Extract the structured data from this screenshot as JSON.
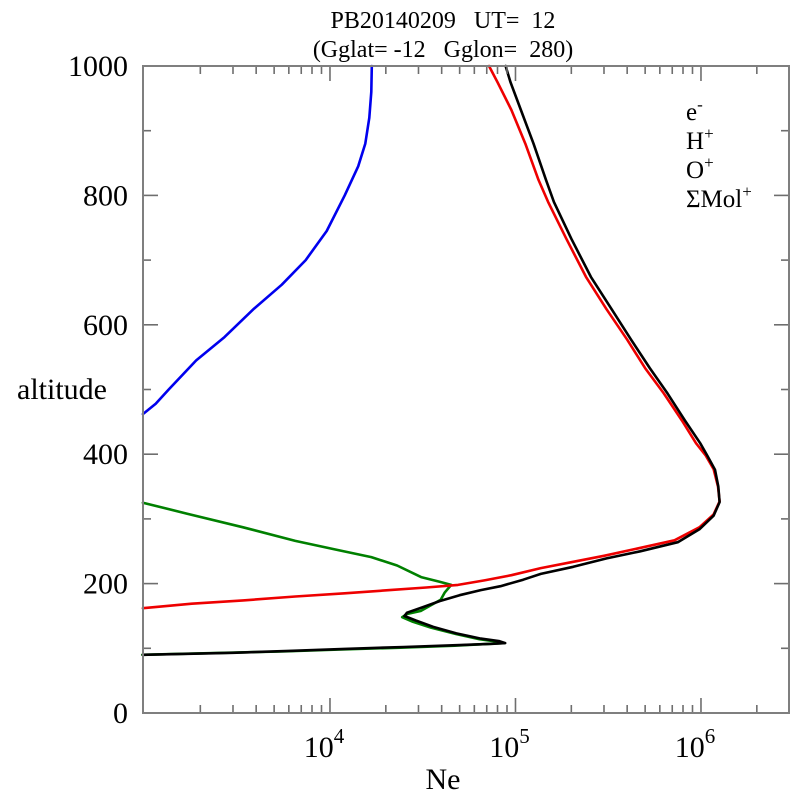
{
  "title": {
    "line1": "PB20140209   UT=  12",
    "line2": "(Gglat= -12   Gglon=  280)"
  },
  "y_axis": {
    "label": "altitude",
    "min": 0,
    "max": 1000,
    "major_ticks": [
      0,
      200,
      400,
      600,
      800,
      1000
    ],
    "minor_ticks": [
      100,
      300,
      500,
      700,
      900
    ]
  },
  "x_axis": {
    "label": "Ne",
    "scale": "log",
    "major_tick_exponents": [
      4,
      5,
      6
    ],
    "minor_tick_values": [
      2000,
      3000,
      4000,
      5000,
      6000,
      7000,
      8000,
      9000,
      20000,
      30000,
      40000,
      50000,
      60000,
      70000,
      80000,
      90000,
      200000,
      300000,
      400000,
      500000,
      600000,
      700000,
      800000,
      900000,
      2000000
    ]
  },
  "legend": {
    "items": [
      {
        "base": "e",
        "sup": "-",
        "color": "#000000"
      },
      {
        "base": "H",
        "sup": "+",
        "color": "#0000ee"
      },
      {
        "base": "O",
        "sup": "+",
        "color": "#ee0000"
      },
      {
        "base": "ΣMol",
        "sup": "+",
        "color": "#008000"
      }
    ]
  },
  "chart_data": {
    "type": "line",
    "title": "PB20140209 UT= 12 (Gglat= -12 Gglon= 280)",
    "xlabel": "Ne",
    "ylabel": "altitude",
    "x_scale": "log",
    "xlim": [
      982,
      2980000
    ],
    "ylim": [
      0,
      1000
    ],
    "grid": false,
    "legend_position": "top-right",
    "series": [
      {
        "name": "e-",
        "color": "#000000",
        "points": [
          [
            980,
            90
          ],
          [
            1500,
            91
          ],
          [
            3000,
            93
          ],
          [
            6000,
            96
          ],
          [
            12000,
            99
          ],
          [
            25000,
            102
          ],
          [
            50000,
            105
          ],
          [
            75000,
            107
          ],
          [
            88000,
            108
          ],
          [
            82000,
            111
          ],
          [
            65000,
            115
          ],
          [
            48000,
            123
          ],
          [
            36000,
            133
          ],
          [
            29000,
            143
          ],
          [
            25200,
            150
          ],
          [
            26000,
            155
          ],
          [
            32000,
            164
          ],
          [
            39000,
            173
          ],
          [
            50000,
            182
          ],
          [
            65000,
            190
          ],
          [
            83000,
            196
          ],
          [
            110000,
            206
          ],
          [
            137000,
            215
          ],
          [
            205000,
            226
          ],
          [
            310000,
            239
          ],
          [
            470000,
            250
          ],
          [
            750000,
            264
          ],
          [
            980000,
            284
          ],
          [
            1170000,
            305
          ],
          [
            1260000,
            326
          ],
          [
            1240000,
            350
          ],
          [
            1190000,
            376
          ],
          [
            1080000,
            398
          ],
          [
            990000,
            417
          ],
          [
            820000,
            452
          ],
          [
            660000,
            494
          ],
          [
            530000,
            533
          ],
          [
            420000,
            577
          ],
          [
            330000,
            624
          ],
          [
            255000,
            674
          ],
          [
            200000,
            733
          ],
          [
            161000,
            790
          ],
          [
            146000,
            824
          ],
          [
            125000,
            880
          ],
          [
            107000,
            932
          ],
          [
            94000,
            975
          ],
          [
            88500,
            1000
          ]
        ]
      },
      {
        "name": "H+",
        "color": "#0000ee",
        "points": [
          [
            980,
            462
          ],
          [
            1150,
            478
          ],
          [
            1350,
            500
          ],
          [
            1900,
            545
          ],
          [
            2700,
            581
          ],
          [
            3900,
            625
          ],
          [
            5500,
            662
          ],
          [
            7400,
            700
          ],
          [
            9600,
            745
          ],
          [
            12000,
            800
          ],
          [
            14200,
            845
          ],
          [
            15500,
            880
          ],
          [
            16300,
            920
          ],
          [
            16700,
            960
          ],
          [
            16800,
            1000
          ]
        ]
      },
      {
        "name": "O+",
        "color": "#ee0000",
        "points": [
          [
            980,
            162
          ],
          [
            1800,
            169
          ],
          [
            3400,
            174
          ],
          [
            6500,
            180
          ],
          [
            12000,
            185
          ],
          [
            21000,
            190
          ],
          [
            33000,
            194
          ],
          [
            49000,
            198
          ],
          [
            68000,
            205
          ],
          [
            95000,
            213
          ],
          [
            137000,
            224
          ],
          [
            200000,
            233
          ],
          [
            300000,
            243
          ],
          [
            450000,
            254
          ],
          [
            720000,
            267
          ],
          [
            980000,
            287
          ],
          [
            1170000,
            307
          ],
          [
            1260000,
            327
          ],
          [
            1235000,
            350
          ],
          [
            1170000,
            377
          ],
          [
            1060000,
            398
          ],
          [
            940000,
            417
          ],
          [
            790000,
            452
          ],
          [
            630000,
            494
          ],
          [
            500000,
            533
          ],
          [
            400000,
            577
          ],
          [
            310000,
            624
          ],
          [
            240000,
            674
          ],
          [
            188000,
            733
          ],
          [
            150000,
            790
          ],
          [
            133000,
            824
          ],
          [
            113000,
            880
          ],
          [
            95000,
            932
          ],
          [
            80000,
            975
          ],
          [
            72000,
            1000
          ]
        ]
      },
      {
        "name": "ΣMol+",
        "color": "#008000",
        "points": [
          [
            980,
            325
          ],
          [
            1700,
            308
          ],
          [
            3400,
            287
          ],
          [
            6500,
            266
          ],
          [
            11000,
            252
          ],
          [
            16700,
            241
          ],
          [
            23000,
            228
          ],
          [
            31000,
            210
          ],
          [
            39000,
            203
          ],
          [
            45000,
            198
          ],
          [
            41500,
            186
          ],
          [
            39500,
            175
          ],
          [
            31000,
            158
          ],
          [
            26000,
            153
          ],
          [
            24500,
            148
          ],
          [
            28000,
            141
          ],
          [
            35000,
            132
          ],
          [
            48000,
            122
          ],
          [
            64000,
            114
          ],
          [
            81000,
            110
          ],
          [
            87500,
            108
          ],
          [
            73000,
            107
          ],
          [
            47000,
            104
          ],
          [
            24000,
            101
          ],
          [
            11000,
            98
          ],
          [
            5500,
            95
          ],
          [
            2700,
            93
          ],
          [
            1400,
            91
          ],
          [
            975,
            90
          ]
        ]
      }
    ]
  }
}
